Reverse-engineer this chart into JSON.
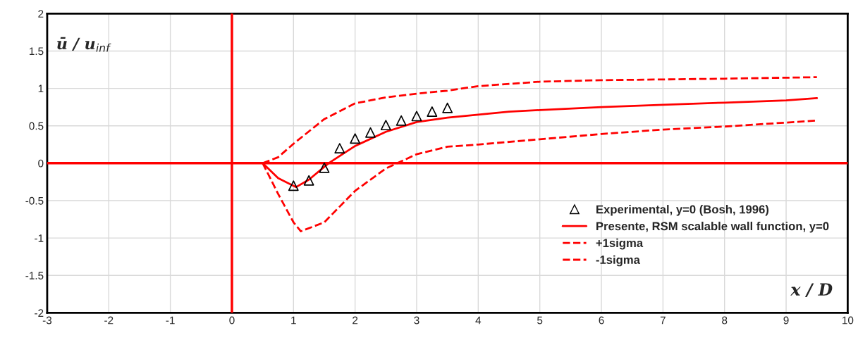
{
  "chart_data": {
    "type": "line",
    "xlabel": "x / D",
    "ylabel": "ū / u$_{inf}$",
    "xlim": [
      -3,
      10
    ],
    "ylim": [
      -2,
      2
    ],
    "xticks": [
      -3,
      -2,
      -1,
      0,
      1,
      2,
      3,
      4,
      5,
      6,
      7,
      8,
      9,
      10
    ],
    "yticks": [
      -2,
      -1.5,
      -1,
      -0.5,
      0,
      0.5,
      1,
      1.5,
      2
    ],
    "grid": true,
    "legend": "bottom right",
    "series": [
      {
        "name": "Experimental, y=0 (Bosh, 1996)",
        "type": "scatter",
        "marker": "triangle",
        "color": "#000000",
        "x": [
          1.0,
          1.25,
          1.5,
          1.75,
          2.0,
          2.25,
          2.5,
          2.75,
          3.0,
          3.25,
          3.5
        ],
        "values": [
          -0.3,
          -0.23,
          -0.06,
          0.2,
          0.33,
          0.41,
          0.51,
          0.57,
          0.63,
          0.69,
          0.74
        ]
      },
      {
        "name": "Presente, RSM scalable wall function, y=0",
        "type": "line",
        "line_style": "solid",
        "color": "#ff0000",
        "x": [
          0.5,
          0.75,
          1.04,
          1.25,
          1.57,
          2.0,
          2.5,
          3.0,
          3.5,
          4.0,
          4.5,
          5.0,
          6.0,
          7.0,
          8.0,
          9.0,
          9.5
        ],
        "values": [
          0,
          -0.2,
          -0.32,
          -0.22,
          0,
          0.23,
          0.42,
          0.55,
          0.61,
          0.65,
          0.69,
          0.71,
          0.75,
          0.78,
          0.81,
          0.84,
          0.87
        ]
      },
      {
        "name": "+1sigma",
        "type": "line",
        "line_style": "dashed",
        "color": "#ff0000",
        "x": [
          0.5,
          0.75,
          1.0,
          1.5,
          2.0,
          2.5,
          3.0,
          3.5,
          4.0,
          5.0,
          6.0,
          7.0,
          8.0,
          9.5
        ],
        "values": [
          0,
          0.08,
          0.26,
          0.59,
          0.8,
          0.88,
          0.93,
          0.97,
          1.03,
          1.09,
          1.11,
          1.12,
          1.13,
          1.15
        ]
      },
      {
        "name": "-1sigma",
        "type": "line",
        "line_style": "dashed",
        "color": "#ff0000",
        "x": [
          0.5,
          0.75,
          1.0,
          1.12,
          1.5,
          2.0,
          2.5,
          3.0,
          3.5,
          4.0,
          5.0,
          6.0,
          7.0,
          8.0,
          9.5
        ],
        "values": [
          0,
          -0.41,
          -0.79,
          -0.91,
          -0.79,
          -0.37,
          -0.07,
          0.12,
          0.22,
          0.25,
          0.32,
          0.39,
          0.45,
          0.49,
          0.57
        ]
      }
    ]
  }
}
